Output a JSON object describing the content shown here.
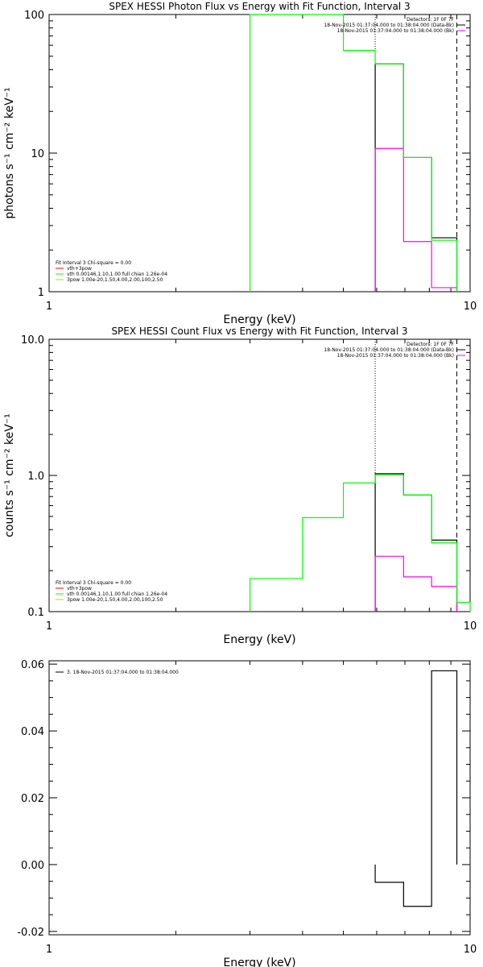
{
  "chart_data": [
    {
      "type": "line",
      "step": true,
      "title": "SPEX HESSI Photon Flux vs Energy with Fit Function, Interval 3",
      "xlabel": "Energy (keV)",
      "ylabel": "photons s⁻¹ cm⁻² keV⁻¹",
      "xscale": "log",
      "yscale": "log",
      "xlim": [
        1,
        10
      ],
      "ylim": [
        1,
        100
      ],
      "xticks": [
        {
          "v": 1,
          "label": "1"
        },
        {
          "v": 10,
          "label": "10"
        }
      ],
      "yticks": [
        {
          "v": 1,
          "label": "1"
        },
        {
          "v": 10,
          "label": "10"
        },
        {
          "v": 100,
          "label": "100"
        }
      ],
      "legend_top": [
        "Detectors: 1F 0F 7F",
        "18-Nov-2015 01:37:04.000 to 01:38:04.000 (Data-Bk)",
        "18-Nov-2015 01:37:04.000 to 01:38:04.000 (Bk)"
      ],
      "legend_bottom": [
        "Fit Interval 3   Chi-square = 0.00",
        "vth+3pow",
        "vth 0.00146,1.10,1.00  full chian 1.26e-04",
        "3pow 1.00e-20,1.50,4.00,2.00,100,2.50"
      ],
      "vlines": [
        {
          "x": 5.95,
          "style": "dotted"
        },
        {
          "x": 9.3,
          "style": "dashed"
        }
      ],
      "series": [
        {
          "color": "#000000",
          "edges": [
            5.95,
            6.95,
            8.1,
            9.3
          ],
          "values": [
            44,
            9.3,
            2.45
          ]
        },
        {
          "color": "#ff00ff",
          "edges": [
            5.95,
            6.95,
            8.1,
            9.3
          ],
          "values": [
            10.8,
            2.3,
            1.07
          ]
        },
        {
          "color": "#00ff00",
          "edges": [
            3.0,
            4.0,
            5.0,
            5.95,
            6.95,
            8.1,
            9.3
          ],
          "values": [
            100,
            100,
            55,
            44,
            9.3,
            2.35
          ]
        }
      ]
    },
    {
      "type": "line",
      "step": true,
      "title": "SPEX HESSI Count Flux vs Energy with Fit Function, Interval 3",
      "xlabel": "Energy (keV)",
      "ylabel": "counts s⁻¹ cm⁻² keV⁻¹",
      "xscale": "log",
      "yscale": "log",
      "xlim": [
        1,
        10
      ],
      "ylim": [
        0.1,
        10
      ],
      "xticks": [
        {
          "v": 1,
          "label": "1"
        },
        {
          "v": 10,
          "label": "10"
        }
      ],
      "yticks": [
        {
          "v": 0.1,
          "label": "0.1"
        },
        {
          "v": 1,
          "label": "1.0"
        },
        {
          "v": 10,
          "label": "10.0"
        }
      ],
      "legend_top": [
        "Detectors: 1F 0F 7F",
        "18-Nov-2015 01:37:04.000 to 01:38:04.000 (Data-Bk)",
        "18-Nov-2015 01:37:04.000 to 01:38:04.000 (Bk)"
      ],
      "legend_bottom": [
        "Fit Interval 3   Chi-square = 0.00",
        "vth+3pow",
        "vth 0.00146,1.10,1.00  full chian 1.26e-04",
        "3pow 1.00e-20,1.50,4.00,2.00,100,2.50"
      ],
      "vlines": [
        {
          "x": 5.95,
          "style": "dotted"
        },
        {
          "x": 9.3,
          "style": "dashed"
        }
      ],
      "series": [
        {
          "color": "#000000",
          "edges": [
            5.95,
            6.95,
            8.1,
            9.3
          ],
          "values": [
            1.03,
            0.72,
            0.335
          ]
        },
        {
          "color": "#ff00ff",
          "edges": [
            5.95,
            6.95,
            8.1,
            9.3
          ],
          "values": [
            0.255,
            0.18,
            0.153
          ]
        },
        {
          "color": "#00ff00",
          "edges": [
            3.0,
            4.0,
            5.0,
            5.95,
            6.95,
            8.1,
            9.3,
            10.0
          ],
          "values": [
            0.175,
            0.49,
            0.88,
            1.01,
            0.72,
            0.32,
            0.117
          ]
        }
      ]
    },
    {
      "type": "line",
      "step": true,
      "title": "",
      "xlabel": "Energy (keV)",
      "ylabel": "",
      "xscale": "log",
      "yscale": "linear",
      "xlim": [
        1,
        10
      ],
      "ylim": [
        -0.021,
        0.061
      ],
      "xticks": [
        {
          "v": 1,
          "label": "1"
        },
        {
          "v": 10,
          "label": "10"
        }
      ],
      "yticks": [
        {
          "v": -0.02,
          "label": "-0.02"
        },
        {
          "v": 0.0,
          "label": "0.00"
        },
        {
          "v": 0.02,
          "label": "0.02"
        },
        {
          "v": 0.04,
          "label": "0.04"
        },
        {
          "v": 0.06,
          "label": "0.06"
        }
      ],
      "legend_top": [
        "3. 18-Nov-2015 01:37:04.000 to 01:38:04.000"
      ],
      "legend_bottom": [],
      "vlines": [],
      "series": [
        {
          "color": "#000000",
          "edges": [
            5.95,
            6.95,
            8.1,
            9.3
          ],
          "values": [
            -0.0053,
            -0.0125,
            0.058
          ],
          "closed": true
        }
      ]
    }
  ]
}
